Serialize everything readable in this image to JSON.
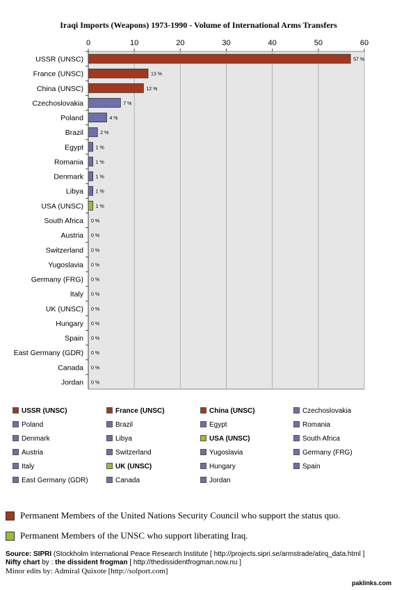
{
  "chart_data": {
    "type": "bar",
    "orientation": "horizontal",
    "title": "Iraqi Imports (Weapons)  1973-1990 - Volume of International Arms Transfers",
    "xlim": [
      0,
      60
    ],
    "xticks": [
      0,
      10,
      20,
      30,
      40,
      50,
      60
    ],
    "grid": true,
    "categories": [
      "USSR (UNSC)",
      "France (UNSC)",
      "China (UNSC)",
      "Czechoslovakia",
      "Poland",
      "Brazil",
      "Egypt",
      "Romania",
      "Denmark",
      "Libya",
      "USA (UNSC)",
      "South Africa",
      "Austria",
      "Switzerland",
      "Yugoslavia",
      "Germany (FRG)",
      "Italy",
      "UK (UNSC)",
      "Hungary",
      "Spain",
      "East Germany (GDR)",
      "Canada",
      "Jordan"
    ],
    "values": [
      57,
      13,
      12,
      7,
      4,
      2,
      1,
      1,
      1,
      1,
      1,
      0,
      0,
      0,
      0,
      0,
      0,
      0,
      0,
      0,
      0,
      0,
      0
    ],
    "value_labels": [
      "57 %",
      "13 %",
      "12 %",
      "7 %",
      "4 %",
      "2 %",
      "1 %",
      "1 %",
      "1 %",
      "1 %",
      "1 %",
      "0 %",
      "0 %",
      "0 %",
      "0 %",
      "0 %",
      "0 %",
      "0 %",
      "0 %",
      "0 %",
      "0 %",
      "0 %",
      "0 %"
    ],
    "groups": [
      "status_quo",
      "status_quo",
      "status_quo",
      "other",
      "other",
      "other",
      "other",
      "other",
      "other",
      "other",
      "liberating",
      "other",
      "other",
      "other",
      "other",
      "other",
      "other",
      "liberating",
      "other",
      "other",
      "other",
      "other",
      "other"
    ]
  },
  "colors": {
    "status_quo": "#a0391f",
    "liberating": "#9bbb3c",
    "other": "#6f6fab",
    "plot_background": "#e6e6e6",
    "grid": "#b0b0b0"
  },
  "legend": {
    "items": [
      {
        "label": "USSR (UNSC)",
        "group": "status_quo",
        "bold": true
      },
      {
        "label": "France (UNSC)",
        "group": "status_quo",
        "bold": true
      },
      {
        "label": "China (UNSC)",
        "group": "status_quo",
        "bold": true
      },
      {
        "label": "Czechoslovakia",
        "group": "other",
        "bold": false
      },
      {
        "label": "Poland",
        "group": "other",
        "bold": false
      },
      {
        "label": "Brazil",
        "group": "other",
        "bold": false
      },
      {
        "label": "Egypt",
        "group": "other",
        "bold": false
      },
      {
        "label": "Romania",
        "group": "other",
        "bold": false
      },
      {
        "label": "Denmark",
        "group": "other",
        "bold": false
      },
      {
        "label": "Libya",
        "group": "other",
        "bold": false
      },
      {
        "label": "USA (UNSC)",
        "group": "liberating",
        "bold": true
      },
      {
        "label": "South Africa",
        "group": "other",
        "bold": false
      },
      {
        "label": "Austria",
        "group": "other",
        "bold": false
      },
      {
        "label": "Switzerland",
        "group": "other",
        "bold": false
      },
      {
        "label": "Yugoslavia",
        "group": "other",
        "bold": false
      },
      {
        "label": "Germany (FRG)",
        "group": "other",
        "bold": false
      },
      {
        "label": "Italy",
        "group": "other",
        "bold": false
      },
      {
        "label": "UK (UNSC)",
        "group": "liberating",
        "bold": true
      },
      {
        "label": "Hungary",
        "group": "other",
        "bold": false
      },
      {
        "label": "Spain",
        "group": "other",
        "bold": false
      },
      {
        "label": "East Germany (GDR)",
        "group": "other",
        "bold": false
      },
      {
        "label": "Canada",
        "group": "other",
        "bold": false
      },
      {
        "label": "Jordan",
        "group": "other",
        "bold": false
      }
    ]
  },
  "notes": {
    "status_quo": "Permanent Members of the United Nations Security Council who support the status quo.",
    "liberating": "Permanent Members of the UNSC who support liberating Iraq."
  },
  "source": {
    "label": "Source:",
    "name": "SIPRI",
    "detail": "(Stockholm International Peace Research Institute [ http://projects.sipri.se/armstrade/atirq_data.html ]",
    "chart_label": "Nifty chart",
    "chart_by": "by :",
    "author": "the dissident frogman",
    "author_url": "[ http://thedissidentfrogman.now.nu ]",
    "edits": "Minor edits by:  Admiral Quixote [http://solport.com]"
  },
  "site": "paklinks.com"
}
